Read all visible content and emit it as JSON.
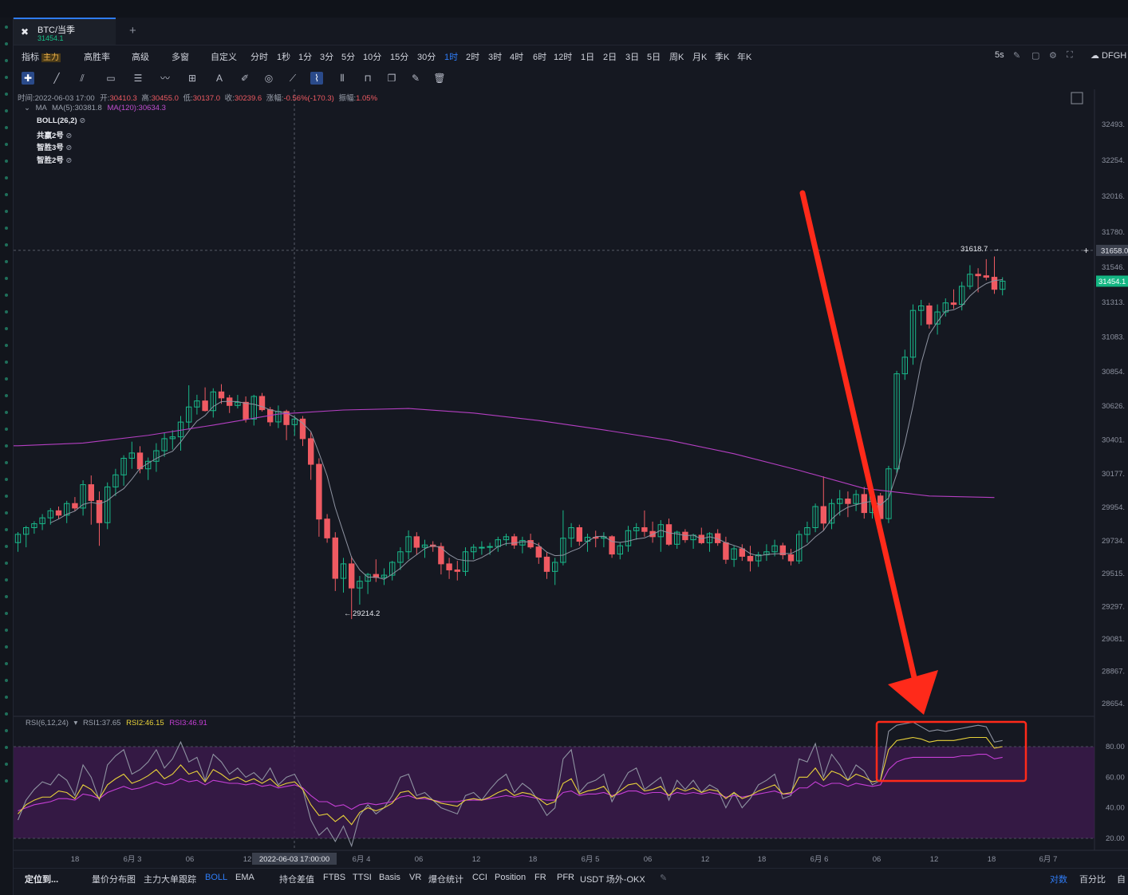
{
  "tab": {
    "symbol": "BTC/当季",
    "price": "31454.1"
  },
  "toolbar": {
    "items": [
      "指标",
      "高胜率",
      "高级",
      "多窗",
      "自定义",
      "分时",
      "1秒",
      "1分",
      "3分",
      "5分",
      "10分",
      "15分",
      "30分",
      "1时",
      "2时",
      "3时",
      "4时",
      "6时",
      "12时",
      "1日",
      "2日",
      "3日",
      "5日",
      "周K",
      "月K",
      "季K",
      "年K"
    ],
    "tag": "主力",
    "active": "1时",
    "refresh": "5s",
    "account": "DFGH"
  },
  "info": {
    "time_label": "时间:2022-06-03 17:00",
    "open_label": "开:",
    "open": "30410.3",
    "high_label": "高:",
    "high": "30455.0",
    "low_label": "低:",
    "low": "30137.0",
    "close_label": "收:",
    "close": "30239.6",
    "change_label": "涨幅:",
    "change": "-0.56%(-170.3)",
    "amp_label": "振幅:",
    "amp": "1.05%",
    "ma_name": "MA",
    "ma5": "MA(5):30381.8",
    "ma120": "MA(120):30634.3",
    "indicators": [
      "BOLL(26,2)",
      "共赢2号",
      "智胜3号",
      "智胜2号"
    ]
  },
  "rsi_info": {
    "name": "RSI(6,12,24)",
    "rsi1": "RSI1:37.65",
    "rsi2": "RSI2:46.15",
    "rsi3": "RSI3:46.91"
  },
  "labels": {
    "high_marker": "31618.7",
    "low_marker": "29214.2",
    "crosshair_time": "2022-06-03 17:00:00",
    "crosshair_price": "31658.0",
    "last_price": "31454.1"
  },
  "bottombar": {
    "locate": "定位到...",
    "items": [
      "量价分布图",
      "主力大单跟踪",
      "BOLL",
      "EMA",
      "持仓差值",
      "FTBS",
      "TTSI",
      "Basis",
      "VR",
      "爆仓统计",
      "CCI",
      "Position",
      "FR",
      "PFR",
      "USDT 场外-OKX"
    ],
    "active": [
      "BOLL"
    ],
    "right": [
      "对数",
      "百分比",
      "自"
    ]
  },
  "colors": {
    "up": "#19b88a",
    "down": "#ef5a62",
    "ma5": "#8e93a1",
    "ma120": "#b43fc2",
    "rsi1": "#8e93a1",
    "rsi2": "#e8d23a",
    "rsi3": "#c63fd6",
    "accent": "#2f7cf6",
    "annotation": "#ff2a1a"
  },
  "chart_data": {
    "type": "candlestick",
    "price_axis": {
      "ticks": [
        "32493.",
        "32254.",
        "32016.",
        "31780.",
        "31546.",
        "31313.",
        "31083.",
        "30854.",
        "30626.",
        "30401.",
        "30177.",
        "29954.",
        "29734.",
        "29515.",
        "29297.",
        "29081.",
        "28867.",
        "28654."
      ],
      "range": [
        28654,
        32493
      ]
    },
    "x_ticks": [
      "18",
      "6月 3",
      "06",
      "12",
      "6月 4",
      "06",
      "12",
      "18",
      "6月 5",
      "06",
      "12",
      "18",
      "6月 6",
      "06",
      "12",
      "18",
      "6月 7"
    ],
    "candles": [
      [
        29721,
        29791,
        29660,
        29776
      ],
      [
        29776,
        29832,
        29690,
        29820
      ],
      [
        29820,
        29863,
        29780,
        29846
      ],
      [
        29846,
        29910,
        29804,
        29885
      ],
      [
        29885,
        29950,
        29840,
        29932
      ],
      [
        29932,
        29960,
        29880,
        29903
      ],
      [
        29903,
        29998,
        29850,
        29980
      ],
      [
        29980,
        30023,
        29930,
        29950
      ],
      [
        29950,
        30134,
        29900,
        30105
      ],
      [
        30105,
        30166,
        29840,
        30000
      ],
      [
        30000,
        30060,
        29700,
        29853
      ],
      [
        29853,
        30120,
        29810,
        30090
      ],
      [
        30090,
        30210,
        30030,
        30170
      ],
      [
        30170,
        30300,
        30098,
        30280
      ],
      [
        30280,
        30390,
        30210,
        30315
      ],
      [
        30315,
        30360,
        30180,
        30210
      ],
      [
        30210,
        30285,
        30136,
        30260
      ],
      [
        30260,
        30380,
        30190,
        30330
      ],
      [
        30330,
        30450,
        30290,
        30410
      ],
      [
        30410,
        30466,
        30338,
        30422
      ],
      [
        30422,
        30560,
        30330,
        30520
      ],
      [
        30520,
        30764,
        30470,
        30620
      ],
      [
        30620,
        30701,
        30570,
        30660
      ],
      [
        30660,
        30750,
        30590,
        30596
      ],
      [
        30596,
        30744,
        30550,
        30720
      ],
      [
        30720,
        30771,
        30640,
        30680
      ],
      [
        30680,
        30700,
        30580,
        30630
      ],
      [
        30630,
        30700,
        30610,
        30651
      ],
      [
        30651,
        30690,
        30517,
        30540
      ],
      [
        30540,
        30701,
        30497,
        30690
      ],
      [
        30690,
        30713,
        30590,
        30602
      ],
      [
        30602,
        30620,
        30493,
        30521
      ],
      [
        30521,
        30630,
        30480,
        30590
      ],
      [
        30590,
        30602,
        30400,
        30503
      ],
      [
        30503,
        30560,
        30430,
        30540
      ],
      [
        30540,
        30560,
        30361,
        30410
      ],
      [
        30410,
        30455,
        30137,
        30240
      ],
      [
        30240,
        30280,
        29760,
        29877
      ],
      [
        29877,
        29910,
        29720,
        29752
      ],
      [
        29752,
        29790,
        29400,
        29484
      ],
      [
        29484,
        29620,
        29390,
        29580
      ],
      [
        29580,
        29630,
        29214,
        29420
      ],
      [
        29420,
        29500,
        29310,
        29465
      ],
      [
        29465,
        29520,
        29380,
        29510
      ],
      [
        29510,
        29610,
        29460,
        29490
      ],
      [
        29490,
        29550,
        29440,
        29505
      ],
      [
        29505,
        29600,
        29470,
        29590
      ],
      [
        29590,
        29690,
        29540,
        29660
      ],
      [
        29660,
        29802,
        29610,
        29760
      ],
      [
        29760,
        29790,
        29640,
        29690
      ],
      [
        29690,
        29740,
        29620,
        29705
      ],
      [
        29705,
        29730,
        29660,
        29695
      ],
      [
        29695,
        29720,
        29510,
        29580
      ],
      [
        29580,
        29620,
        29480,
        29540
      ],
      [
        29540,
        29600,
        29470,
        29530
      ],
      [
        29530,
        29690,
        29500,
        29660
      ],
      [
        29660,
        29710,
        29610,
        29690
      ],
      [
        29690,
        29730,
        29640,
        29690
      ],
      [
        29690,
        29720,
        29640,
        29695
      ],
      [
        29695,
        29760,
        29660,
        29740
      ],
      [
        29740,
        29780,
        29700,
        29760
      ],
      [
        29760,
        29780,
        29680,
        29705
      ],
      [
        29705,
        29760,
        29650,
        29735
      ],
      [
        29735,
        29780,
        29680,
        29692
      ],
      [
        29692,
        29720,
        29580,
        29625
      ],
      [
        29625,
        29660,
        29480,
        29530
      ],
      [
        29530,
        29620,
        29440,
        29590
      ],
      [
        29590,
        29935,
        29570,
        29750
      ],
      [
        29750,
        29850,
        29690,
        29820
      ],
      [
        29820,
        29840,
        29700,
        29730
      ],
      [
        29730,
        29780,
        29660,
        29756
      ],
      [
        29756,
        29800,
        29690,
        29750
      ],
      [
        29750,
        29790,
        29690,
        29760
      ],
      [
        29760,
        29770,
        29620,
        29645
      ],
      [
        29645,
        29720,
        29610,
        29700
      ],
      [
        29700,
        29832,
        29660,
        29800
      ],
      [
        29800,
        29850,
        29740,
        29820
      ],
      [
        29820,
        29934,
        29760,
        29795
      ],
      [
        29795,
        29860,
        29720,
        29760
      ],
      [
        29760,
        29870,
        29660,
        29840
      ],
      [
        29840,
        29880,
        29700,
        29710
      ],
      [
        29710,
        29800,
        29680,
        29790
      ],
      [
        29790,
        29810,
        29720,
        29740
      ],
      [
        29740,
        29780,
        29680,
        29770
      ],
      [
        29770,
        29820,
        29710,
        29720
      ],
      [
        29720,
        29790,
        29660,
        29780
      ],
      [
        29780,
        29810,
        29700,
        29720
      ],
      [
        29720,
        29760,
        29580,
        29610
      ],
      [
        29610,
        29700,
        29560,
        29680
      ],
      [
        29680,
        29710,
        29600,
        29630
      ],
      [
        29630,
        29700,
        29530,
        29600
      ],
      [
        29600,
        29660,
        29560,
        29640
      ],
      [
        29640,
        29710,
        29600,
        29660
      ],
      [
        29660,
        29740,
        29630,
        29700
      ],
      [
        29700,
        29720,
        29610,
        29640
      ],
      [
        29640,
        29680,
        29570,
        29600
      ],
      [
        29600,
        29800,
        29580,
        29775
      ],
      [
        29775,
        29860,
        29720,
        29820
      ],
      [
        29820,
        29980,
        29790,
        29960
      ],
      [
        29960,
        30160,
        29800,
        29850
      ],
      [
        29850,
        30010,
        29810,
        29980
      ],
      [
        29980,
        30070,
        29900,
        30010
      ],
      [
        30010,
        30060,
        29890,
        29980
      ],
      [
        29980,
        30070,
        29930,
        30040
      ],
      [
        30040,
        30090,
        29880,
        29920
      ],
      [
        29920,
        30050,
        29880,
        30030
      ],
      [
        30030,
        30050,
        29850,
        29880
      ],
      [
        29880,
        30230,
        29850,
        30210
      ],
      [
        30210,
        30860,
        30180,
        30840
      ],
      [
        30840,
        31000,
        30800,
        30950
      ],
      [
        30950,
        31300,
        30900,
        31260
      ],
      [
        31260,
        31330,
        31160,
        31290
      ],
      [
        31290,
        31310,
        31140,
        31170
      ],
      [
        31170,
        31300,
        31100,
        31250
      ],
      [
        31250,
        31340,
        31220,
        31310
      ],
      [
        31310,
        31400,
        31270,
        31300
      ],
      [
        31300,
        31450,
        31260,
        31420
      ],
      [
        31420,
        31560,
        31400,
        31500
      ],
      [
        31500,
        31540,
        31380,
        31490
      ],
      [
        31490,
        31600,
        31460,
        31480
      ],
      [
        31480,
        31618,
        31370,
        31400
      ],
      [
        31400,
        31480,
        31360,
        31454
      ]
    ],
    "ma120": [
      [
        0,
        30363
      ],
      [
        8,
        30381
      ],
      [
        16,
        30432
      ],
      [
        24,
        30500
      ],
      [
        32,
        30573
      ],
      [
        40,
        30600
      ],
      [
        48,
        30610
      ],
      [
        56,
        30580
      ],
      [
        64,
        30530
      ],
      [
        72,
        30468
      ],
      [
        80,
        30400
      ],
      [
        88,
        30310
      ],
      [
        96,
        30200
      ],
      [
        104,
        30080
      ],
      [
        112,
        30030
      ],
      [
        120,
        30020
      ]
    ],
    "rsi_axis": {
      "ticks": [
        "80.00",
        "60.00",
        "40.00",
        "20.00"
      ],
      "range": [
        14,
        100
      ]
    },
    "rsi1": [
      32,
      45,
      52,
      57,
      55,
      62,
      58,
      48,
      68,
      60,
      45,
      68,
      74,
      78,
      62,
      65,
      70,
      78,
      66,
      72,
      83,
      70,
      73,
      58,
      75,
      70,
      62,
      66,
      60,
      63,
      58,
      66,
      55,
      60,
      62,
      52,
      32,
      22,
      27,
      18,
      28,
      15,
      35,
      42,
      36,
      40,
      48,
      60,
      62,
      48,
      50,
      45,
      40,
      38,
      36,
      48,
      50,
      45,
      52,
      58,
      62,
      50,
      56,
      52,
      44,
      35,
      40,
      72,
      78,
      50,
      56,
      58,
      62,
      44,
      54,
      63,
      66,
      52,
      56,
      60,
      45,
      58,
      52,
      58,
      50,
      55,
      52,
      40,
      50,
      40,
      46,
      55,
      58,
      62,
      46,
      48,
      72,
      70,
      82,
      60,
      75,
      68,
      58,
      68,
      64,
      55,
      58,
      90,
      94,
      95,
      96,
      93,
      90,
      91,
      90,
      91,
      92,
      93,
      94,
      93,
      83,
      84
    ],
    "rsi2": [
      36,
      42,
      45,
      47,
      47,
      51,
      50,
      46,
      55,
      52,
      46,
      55,
      59,
      62,
      56,
      58,
      61,
      65,
      59,
      62,
      68,
      62,
      64,
      57,
      65,
      62,
      58,
      60,
      57,
      59,
      56,
      59,
      54,
      56,
      57,
      52,
      42,
      35,
      36,
      31,
      35,
      29,
      37,
      40,
      38,
      40,
      43,
      50,
      51,
      46,
      47,
      45,
      43,
      42,
      41,
      45,
      46,
      45,
      47,
      50,
      52,
      48,
      50,
      49,
      46,
      42,
      44,
      56,
      59,
      49,
      51,
      52,
      54,
      47,
      51,
      55,
      56,
      51,
      52,
      54,
      48,
      53,
      51,
      53,
      50,
      52,
      51,
      46,
      50,
      46,
      48,
      51,
      53,
      55,
      49,
      50,
      60,
      60,
      66,
      58,
      64,
      62,
      58,
      62,
      60,
      57,
      58,
      78,
      84,
      85,
      86,
      85,
      83,
      84,
      84,
      84,
      85,
      86,
      86,
      86,
      79,
      80
    ],
    "rsi3": [
      38,
      40,
      42,
      43,
      44,
      46,
      46,
      45,
      49,
      48,
      46,
      50,
      52,
      54,
      52,
      53,
      55,
      57,
      55,
      56,
      59,
      57,
      58,
      55,
      58,
      57,
      56,
      56,
      55,
      56,
      54,
      55,
      53,
      54,
      55,
      53,
      48,
      44,
      44,
      41,
      42,
      39,
      42,
      43,
      42,
      43,
      44,
      47,
      48,
      46,
      46,
      45,
      44,
      44,
      44,
      45,
      45,
      45,
      46,
      47,
      48,
      47,
      48,
      47,
      46,
      45,
      45,
      50,
      51,
      48,
      49,
      49,
      50,
      48,
      49,
      51,
      51,
      49,
      50,
      50,
      48,
      50,
      49,
      50,
      49,
      50,
      49,
      47,
      48,
      47,
      48,
      49,
      50,
      51,
      49,
      49,
      53,
      53,
      57,
      54,
      56,
      56,
      54,
      56,
      55,
      54,
      55,
      65,
      70,
      72,
      73,
      73,
      73,
      73,
      73,
      73,
      74,
      74,
      75,
      75,
      72,
      73
    ]
  }
}
